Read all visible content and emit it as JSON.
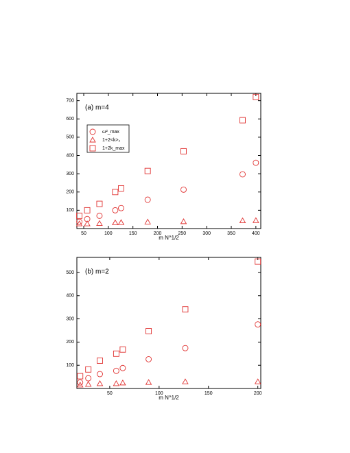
{
  "chart_data": [
    {
      "type": "scatter",
      "annotation": "(a) m=4",
      "xlabel": "m N^1/2",
      "x": [
        41,
        57,
        82,
        114,
        126,
        180,
        253,
        373,
        400
      ],
      "series": [
        {
          "name": "ω²_max",
          "color": "#e0302f",
          "marker": "circle",
          "values": [
            37,
            52,
            70,
            100,
            112,
            158,
            213,
            297,
            360
          ]
        },
        {
          "name": "1+2<k>₂",
          "color": "#e0302f",
          "marker": "triangle",
          "values": [
            26,
            26,
            28,
            32,
            33,
            36,
            38,
            43,
            44
          ]
        },
        {
          "name": "1+2k_max",
          "color": "#e0302f",
          "marker": "square",
          "values": [
            70,
            100,
            135,
            200,
            220,
            315,
            423,
            593,
            720
          ]
        }
      ],
      "xlim": [
        36,
        410
      ],
      "ylim": [
        0,
        740
      ],
      "xticks": [
        50,
        100,
        150,
        200,
        250,
        300,
        350,
        400
      ],
      "yticks": [
        100,
        200,
        300,
        400,
        500,
        600,
        700
      ],
      "legend": "upper left"
    },
    {
      "type": "scatter",
      "annotation": "(b) m=2",
      "xlabel": "m N^1/2",
      "x": [
        20,
        28.3,
        40,
        56.6,
        63.2,
        89.4,
        126.5,
        200
      ],
      "series": [
        {
          "color": "#e0302f",
          "marker": "circle",
          "values": [
            26,
            44,
            62,
            76,
            88,
            126,
            174,
            276
          ]
        },
        {
          "color": "#e0302f",
          "marker": "triangle",
          "values": [
            15,
            18,
            21,
            21,
            24,
            26,
            29,
            29
          ]
        },
        {
          "color": "#e0302f",
          "marker": "square",
          "values": [
            53,
            82,
            120,
            150,
            168,
            247,
            341,
            547
          ]
        }
      ],
      "xlim": [
        16.7,
        203
      ],
      "ylim": [
        0,
        565
      ],
      "xticks": [
        50,
        100,
        150,
        200
      ],
      "yticks": [
        100,
        200,
        300,
        400,
        500
      ]
    }
  ]
}
